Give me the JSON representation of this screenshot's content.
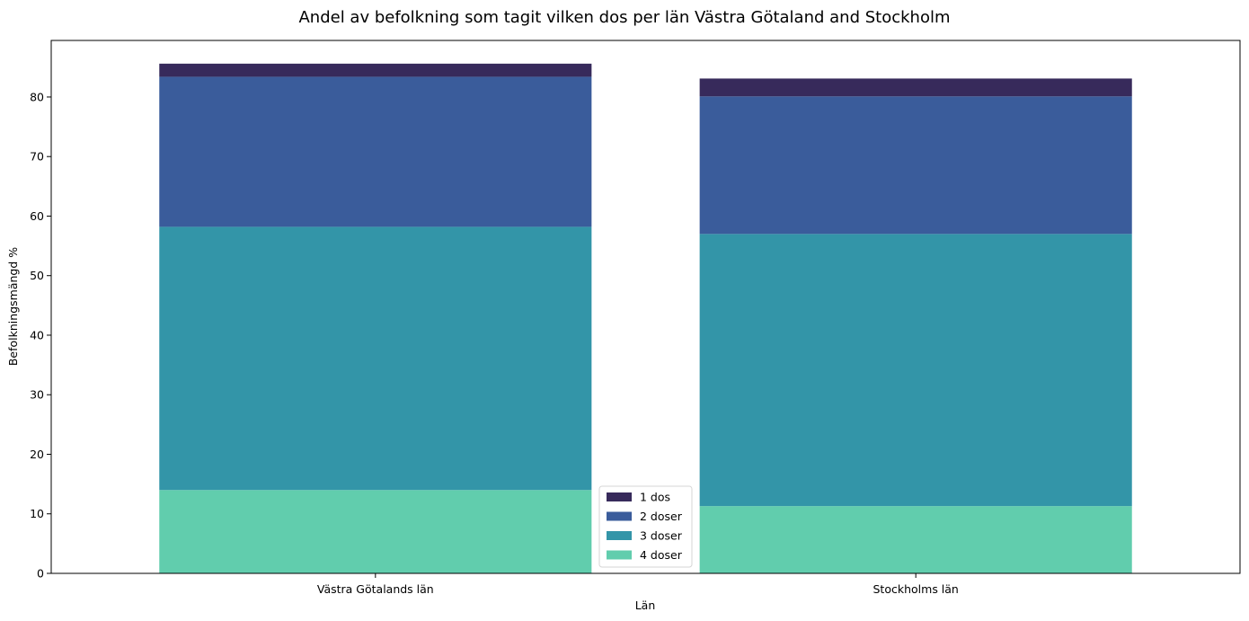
{
  "chart_data": {
    "type": "bar",
    "stacked": true,
    "title": "Andel av befolkning som tagit vilken dos per län Västra Götaland and Stockholm",
    "xlabel": "Län",
    "ylabel": "Befolkningsmängd %",
    "categories": [
      "Västra Götalands län",
      "Stockholms län"
    ],
    "ylim": [
      0,
      89.5
    ],
    "yticks": [
      0,
      10,
      20,
      30,
      40,
      50,
      60,
      70,
      80
    ],
    "grid": false,
    "legend": {
      "position": "bottom-center"
    },
    "series": [
      {
        "name": "4 doser",
        "color": "#61cdad",
        "values": [
          14.0,
          11.3
        ]
      },
      {
        "name": "3 doser",
        "color": "#3395a8",
        "values": [
          44.2,
          45.7
        ]
      },
      {
        "name": "2 doser",
        "color": "#3a5c9b",
        "values": [
          25.2,
          23.1
        ]
      },
      {
        "name": "1 dos",
        "color": "#372a5b",
        "values": [
          2.2,
          3.0
        ]
      }
    ],
    "legend_order": [
      "1 dos",
      "2 doser",
      "3 doser",
      "4 doser"
    ]
  }
}
